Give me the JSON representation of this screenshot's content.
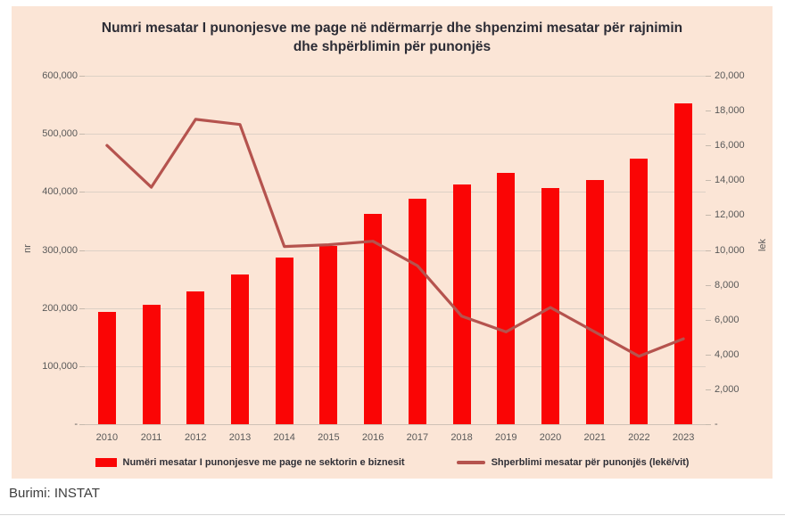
{
  "page": {
    "source_label": "Burimi: INSTAT"
  },
  "chart_data": {
    "type": "bar",
    "title": "Numri mesatar I punonjesve me page në ndërmarrje dhe shpenzimi mesatar për rajnimin dhe shpërblimin për punonjës",
    "title_lines": [
      "Numri mesatar I punonjesve me page në ndërmarrje dhe shpenzimi mesatar për rajnimin",
      "dhe shpërblimin për punonjës"
    ],
    "categories": [
      "2010",
      "2011",
      "2012",
      "2013",
      "2014",
      "2015",
      "2016",
      "2017",
      "2018",
      "2019",
      "2020",
      "2021",
      "2022",
      "2023"
    ],
    "series": [
      {
        "name": "Numëri mesatar I punonjesve me page ne sektorin e biznesit",
        "type": "bar",
        "axis": "left",
        "color": "#fa0505",
        "values": [
          194000,
          205000,
          228000,
          258000,
          287000,
          307000,
          362000,
          388000,
          413000,
          432000,
          407000,
          420000,
          458000,
          552000
        ]
      },
      {
        "name": "Shperblimi mesatar për punonjës (lekë/vit)",
        "type": "line",
        "axis": "right",
        "color": "#b5534e",
        "values": [
          16000,
          13600,
          17500,
          17200,
          10200,
          10300,
          10500,
          9100,
          6200,
          5300,
          6700,
          5300,
          3900,
          4900
        ]
      }
    ],
    "left_axis": {
      "label": "nr",
      "min": 0,
      "max": 600000,
      "tick_step": 100000,
      "ticks": [
        "-",
        "100,000",
        "200,000",
        "300,000",
        "400,000",
        "500,000",
        "600,000"
      ]
    },
    "right_axis": {
      "label": "lek",
      "min": 0,
      "max": 20000,
      "tick_step": 2000,
      "ticks": [
        "-",
        "2,000",
        "4,000",
        "6,000",
        "8,000",
        "10,000",
        "12,000",
        "14,000",
        "16,000",
        "18,000",
        "20,000"
      ]
    },
    "grid": true,
    "legend_position": "bottom",
    "background": "#fbe5d6"
  }
}
